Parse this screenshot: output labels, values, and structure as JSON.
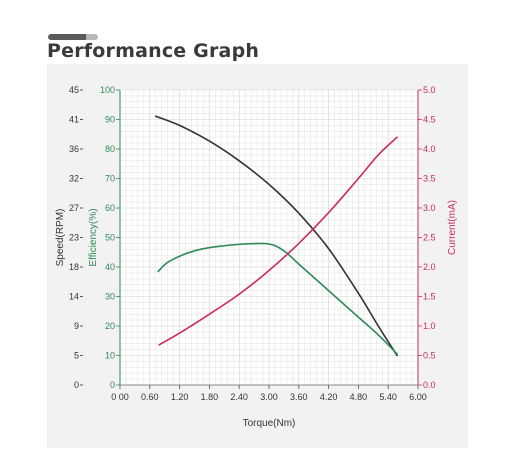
{
  "page": {
    "title": "Performance Graph"
  },
  "chart_data": {
    "type": "line",
    "title": "",
    "xlabel": "Torque(Nm)",
    "xlim": [
      0,
      6.0
    ],
    "x_ticks": [
      "0 00",
      "0.60",
      "1.20",
      "1.80",
      "2.40",
      "3.00",
      "3.60",
      "4.20",
      "4.80",
      "5.40",
      "6.00"
    ],
    "grid": true,
    "axes": {
      "speed": {
        "label": "Speed(RPM)",
        "color": "#333333",
        "side": "left-outer",
        "ticks": [
          "45",
          "41",
          "36",
          "32",
          "27",
          "23",
          "18",
          "14",
          "9",
          "5",
          "0"
        ],
        "range": [
          0,
          45
        ]
      },
      "efficiency": {
        "label": "Efficiency(%)",
        "color": "#2e8b57",
        "side": "left-inner",
        "ticks": [
          "100",
          "90",
          "80",
          "70",
          "60",
          "50",
          "40",
          "30",
          "20",
          "10",
          "0"
        ],
        "range": [
          0,
          100
        ]
      },
      "current": {
        "label": "Current(mA)",
        "color": "#cc2a62",
        "side": "right",
        "ticks": [
          "5.0",
          "4.5",
          "4.0",
          "3.5",
          "3.0",
          "2.5",
          "2.0",
          "1.5",
          "1.0",
          "0.5",
          "0.0"
        ],
        "range": [
          0,
          5.0
        ]
      }
    },
    "series": [
      {
        "axis": "speed",
        "color": "#333333",
        "x": [
          0.72,
          1.2,
          1.8,
          2.4,
          3.0,
          3.6,
          4.2,
          4.8,
          5.2,
          5.58
        ],
        "y": [
          41.0,
          39.6,
          37.2,
          34.2,
          30.6,
          26.2,
          20.8,
          14.0,
          9.0,
          4.5
        ]
      },
      {
        "axis": "efficiency",
        "color": "#2e8b57",
        "x": [
          0.77,
          1.0,
          1.5,
          2.0,
          2.5,
          3.0,
          3.3,
          3.6,
          4.2,
          4.8,
          5.2,
          5.58
        ],
        "y": [
          38.5,
          42.0,
          45.5,
          47.0,
          47.8,
          47.8,
          45.5,
          41.0,
          32.0,
          23.0,
          17.0,
          10.5
        ]
      },
      {
        "axis": "current",
        "color": "#cc2a62",
        "x": [
          0.79,
          1.2,
          1.8,
          2.4,
          3.0,
          3.6,
          4.2,
          4.8,
          5.2,
          5.58
        ],
        "y": [
          0.68,
          0.88,
          1.2,
          1.54,
          1.94,
          2.4,
          2.92,
          3.5,
          3.9,
          4.2
        ]
      }
    ]
  }
}
